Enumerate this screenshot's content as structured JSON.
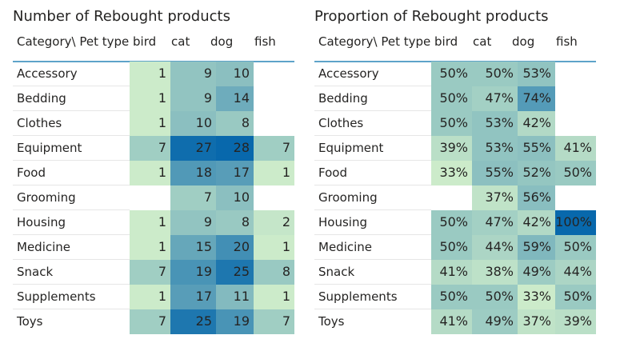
{
  "charts": [
    {
      "title": "Number of Rebought products",
      "corner_header": "Category\\ Pet type",
      "columns": [
        "bird",
        "cat",
        "dog",
        "fish"
      ],
      "rows": [
        {
          "label": "Accessory",
          "values": [
            "1",
            "9",
            "10",
            ""
          ]
        },
        {
          "label": "Bedding",
          "values": [
            "1",
            "9",
            "14",
            ""
          ]
        },
        {
          "label": "Clothes",
          "values": [
            "1",
            "10",
            "8",
            ""
          ]
        },
        {
          "label": "Equipment",
          "values": [
            "7",
            "27",
            "28",
            "7"
          ]
        },
        {
          "label": "Food",
          "values": [
            "1",
            "18",
            "17",
            "1"
          ]
        },
        {
          "label": "Grooming",
          "values": [
            "",
            "7",
            "10",
            ""
          ]
        },
        {
          "label": "Housing",
          "values": [
            "1",
            "9",
            "8",
            "2"
          ]
        },
        {
          "label": "Medicine",
          "values": [
            "1",
            "15",
            "20",
            "1"
          ]
        },
        {
          "label": "Snack",
          "values": [
            "7",
            "19",
            "25",
            "8"
          ]
        },
        {
          "label": "Supplements",
          "values": [
            "1",
            "17",
            "11",
            "1"
          ]
        },
        {
          "label": "Toys",
          "values": [
            "7",
            "25",
            "19",
            "7"
          ]
        }
      ]
    },
    {
      "title": "Proportion of Rebought products",
      "corner_header": "Category\\ Pet type",
      "columns": [
        "bird",
        "cat",
        "dog",
        "fish"
      ],
      "rows": [
        {
          "label": "Accessory",
          "values": [
            "50%",
            "50%",
            "53%",
            ""
          ]
        },
        {
          "label": "Bedding",
          "values": [
            "50%",
            "47%",
            "74%",
            ""
          ]
        },
        {
          "label": "Clothes",
          "values": [
            "50%",
            "53%",
            "42%",
            ""
          ]
        },
        {
          "label": "Equipment",
          "values": [
            "39%",
            "53%",
            "55%",
            "41%"
          ]
        },
        {
          "label": "Food",
          "values": [
            "33%",
            "55%",
            "52%",
            "50%"
          ]
        },
        {
          "label": "Grooming",
          "values": [
            "",
            "37%",
            "56%",
            ""
          ]
        },
        {
          "label": "Housing",
          "values": [
            "50%",
            "47%",
            "42%",
            "100%"
          ]
        },
        {
          "label": "Medicine",
          "values": [
            "50%",
            "44%",
            "59%",
            "50%"
          ]
        },
        {
          "label": "Snack",
          "values": [
            "41%",
            "38%",
            "49%",
            "44%"
          ]
        },
        {
          "label": "Supplements",
          "values": [
            "50%",
            "50%",
            "33%",
            "50%"
          ]
        },
        {
          "label": "Toys",
          "values": [
            "41%",
            "49%",
            "37%",
            "39%"
          ]
        }
      ]
    }
  ],
  "chart_data": [
    {
      "type": "heatmap",
      "title": "Number of Rebought products",
      "x_categories": [
        "bird",
        "cat",
        "dog",
        "fish"
      ],
      "y_categories": [
        "Accessory",
        "Bedding",
        "Clothes",
        "Equipment",
        "Food",
        "Grooming",
        "Housing",
        "Medicine",
        "Snack",
        "Supplements",
        "Toys"
      ],
      "values": [
        [
          1,
          9,
          10,
          null
        ],
        [
          1,
          9,
          14,
          null
        ],
        [
          1,
          10,
          8,
          null
        ],
        [
          7,
          27,
          28,
          7
        ],
        [
          1,
          18,
          17,
          1
        ],
        [
          null,
          7,
          10,
          null
        ],
        [
          1,
          9,
          8,
          2
        ],
        [
          1,
          15,
          20,
          1
        ],
        [
          7,
          19,
          25,
          8
        ],
        [
          1,
          17,
          11,
          1
        ],
        [
          7,
          25,
          19,
          7
        ]
      ],
      "color_range": [
        "#ccebca",
        "#0868ac"
      ]
    },
    {
      "type": "heatmap",
      "title": "Proportion of Rebought products",
      "x_categories": [
        "bird",
        "cat",
        "dog",
        "fish"
      ],
      "y_categories": [
        "Accessory",
        "Bedding",
        "Clothes",
        "Equipment",
        "Food",
        "Grooming",
        "Housing",
        "Medicine",
        "Snack",
        "Supplements",
        "Toys"
      ],
      "values": [
        [
          50,
          50,
          53,
          null
        ],
        [
          50,
          47,
          74,
          null
        ],
        [
          50,
          53,
          42,
          null
        ],
        [
          39,
          53,
          55,
          41
        ],
        [
          33,
          55,
          52,
          50
        ],
        [
          null,
          37,
          56,
          null
        ],
        [
          50,
          47,
          42,
          100
        ],
        [
          50,
          44,
          59,
          50
        ],
        [
          41,
          38,
          49,
          44
        ],
        [
          50,
          50,
          33,
          50
        ],
        [
          41,
          49,
          37,
          39
        ]
      ],
      "unit": "%",
      "color_range": [
        "#ccebca",
        "#0868ac"
      ]
    }
  ],
  "colors": {
    "low": "#ccebca",
    "high": "#0868ac",
    "header_line": "#5ea3c9",
    "row_separator": "#e6e6e6",
    "text": "#252423"
  }
}
